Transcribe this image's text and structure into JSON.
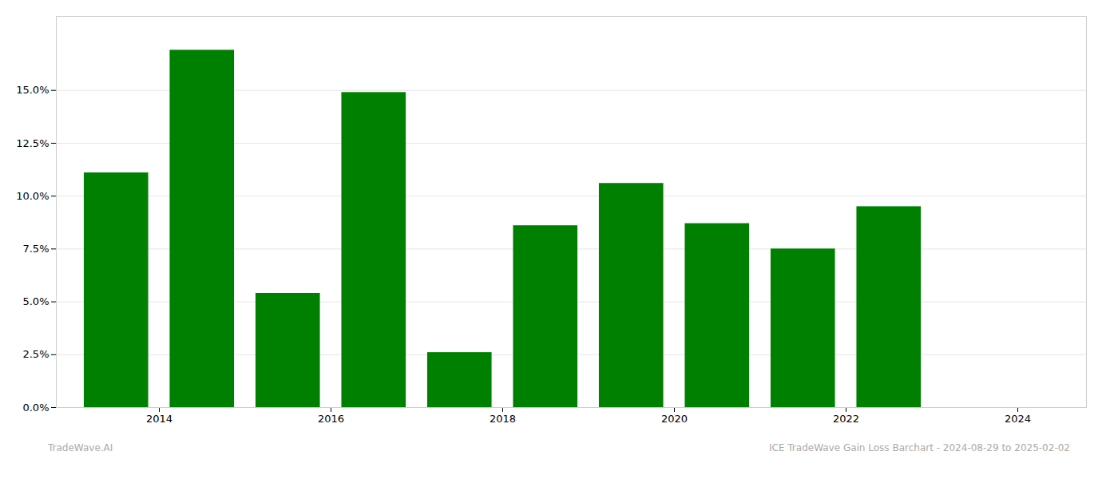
{
  "chart_data": {
    "type": "bar",
    "x": [
      2013.5,
      2014.5,
      2015.5,
      2016.5,
      2017.5,
      2018.5,
      2019.5,
      2020.5,
      2021.5,
      2022.5
    ],
    "values": [
      0.111,
      0.169,
      0.054,
      0.149,
      0.026,
      0.086,
      0.106,
      0.087,
      0.075,
      0.095
    ],
    "color": "#008000",
    "xlim": [
      2012.8,
      2024.8
    ],
    "xticks": [
      2014,
      2016,
      2018,
      2020,
      2022,
      2024
    ],
    "ylim": [
      0,
      0.185
    ],
    "yticks": [
      {
        "value": 0.0,
        "label": "0.0%"
      },
      {
        "value": 0.025,
        "label": "2.5%"
      },
      {
        "value": 0.05,
        "label": "5.0%"
      },
      {
        "value": 0.075,
        "label": "7.5%"
      },
      {
        "value": 0.1,
        "label": "10.0%"
      },
      {
        "value": 0.125,
        "label": "12.5%"
      },
      {
        "value": 0.15,
        "label": "15.0%"
      }
    ],
    "grid": true,
    "annotations": [
      "TradeWave.AI",
      "ICE TradeWave Gain Loss Barchart - 2024-08-29 to 2025-02-02"
    ]
  }
}
